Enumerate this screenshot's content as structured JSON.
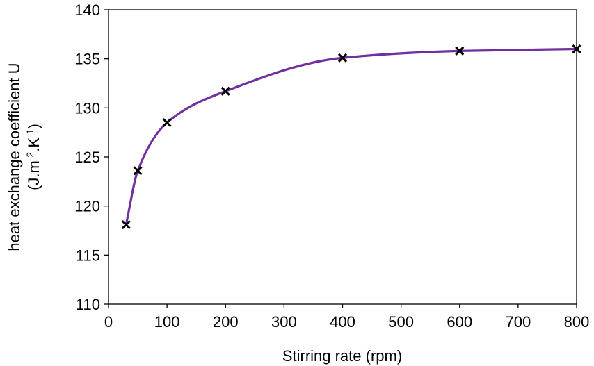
{
  "chart_data": {
    "type": "scatter",
    "title": "",
    "xlabel": "Stirring rate (rpm)",
    "ylabel_line1": "heat exchange coefficient U",
    "ylabel_line2_parts": [
      "(J.m",
      "-2",
      ".K",
      "-1",
      ")"
    ],
    "xlim": [
      0,
      800
    ],
    "ylim": [
      110,
      140
    ],
    "x_ticks": [
      0,
      100,
      200,
      300,
      400,
      500,
      600,
      700,
      800
    ],
    "y_ticks": [
      110,
      115,
      120,
      125,
      130,
      135,
      140
    ],
    "grid": false,
    "legend": "none",
    "series": [
      {
        "marker": "x",
        "smooth_line": true,
        "line_color": "#7030a0",
        "marker_color": "#000000",
        "x": [
          30,
          50,
          100,
          200,
          400,
          600,
          800
        ],
        "y": [
          118.1,
          123.6,
          128.5,
          131.7,
          135.1,
          135.8,
          136.0
        ]
      }
    ]
  }
}
